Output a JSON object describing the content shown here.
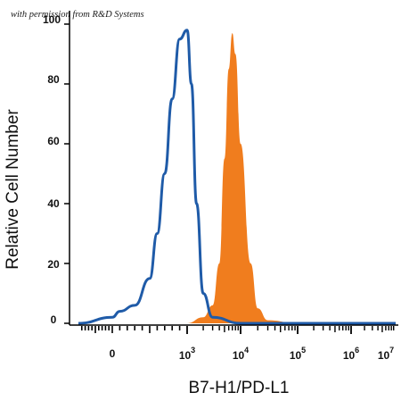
{
  "watermark": "with permission from R&D Systems",
  "chart_data": {
    "type": "area",
    "xlabel": "B7-H1/PD-L1",
    "ylabel": "Relative Cell Number",
    "x_scale": "biexponential (log decades)",
    "xticks": [
      {
        "base": "0",
        "exp": ""
      },
      {
        "base": "10",
        "exp": "3"
      },
      {
        "base": "10",
        "exp": "4"
      },
      {
        "base": "10",
        "exp": "5"
      },
      {
        "base": "10",
        "exp": "6"
      },
      {
        "base": "10",
        "exp": "7"
      }
    ],
    "yticks": [
      "0",
      "20",
      "40",
      "60",
      "80",
      "100"
    ],
    "ylim": [
      0,
      100
    ],
    "grid": false,
    "legend": "none",
    "series": [
      {
        "style": "outline",
        "color": "#1f5ba8",
        "x": [
          "-1e3",
          "0",
          "1e2",
          "3e2",
          "5e2",
          "6e2",
          "7e2",
          "8e2",
          "9e2",
          "1e3",
          "1.2e3",
          "1.5e3",
          "2e3",
          "3e3",
          "1e4",
          "1e7"
        ],
        "y": [
          0,
          2,
          4,
          6,
          15,
          30,
          50,
          75,
          95,
          98,
          80,
          40,
          10,
          2,
          0,
          0
        ]
      },
      {
        "style": "filled",
        "color": "#f07d1e",
        "x": [
          "-1e3",
          "1e3",
          "2e3",
          "3e3",
          "4e3",
          "5e3",
          "6e3",
          "7e3",
          "8e3",
          "1e4",
          "1.5e4",
          "2e4",
          "3e4",
          "1e5",
          "1e7"
        ],
        "y": [
          0,
          0,
          2,
          6,
          20,
          55,
          85,
          97,
          90,
          60,
          20,
          5,
          1,
          0,
          0
        ]
      }
    ]
  }
}
